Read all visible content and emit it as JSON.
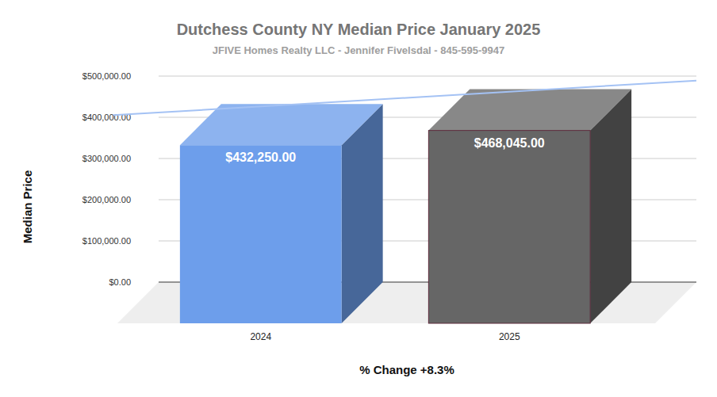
{
  "chart_data": {
    "type": "bar",
    "title": "Dutchess County NY Median Price January 2025",
    "subtitle": "JFIVE Homes Realty LLC - Jennifer Fivelsdal - 845-595-9947",
    "y_label": "Median Price",
    "annotation": "% Change  +8.3%",
    "categories": [
      "2024",
      "2025"
    ],
    "values": [
      432250,
      468045
    ],
    "value_labels": [
      "$432,250.00",
      "$468,045.00"
    ],
    "colors": [
      "#6d9eeb",
      "#666666"
    ],
    "ylim": [
      0,
      500000
    ],
    "yticks": [
      {
        "value": 0,
        "label": "$0.00"
      },
      {
        "value": 100000,
        "label": "$100,000.00"
      },
      {
        "value": 200000,
        "label": "$200,000.00"
      },
      {
        "value": 300000,
        "label": "$300,000.00"
      },
      {
        "value": 400000,
        "label": "$400,000.00"
      },
      {
        "value": 500000,
        "label": "$500,000.00"
      }
    ],
    "grid": true,
    "data_labels": true
  }
}
